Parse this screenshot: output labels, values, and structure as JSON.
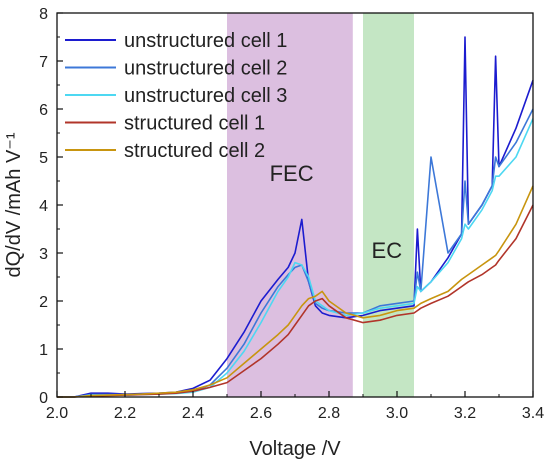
{
  "chart_data": {
    "type": "line",
    "xlabel": "Voltage /V",
    "ylabel": "dQ/dV /mAh V⁻¹",
    "xlim": [
      2.0,
      3.4
    ],
    "ylim": [
      0,
      8
    ],
    "xticks": [
      "2.0",
      "2.2",
      "2.4",
      "2.6",
      "2.8",
      "3.0",
      "3.2",
      "3.4"
    ],
    "yticks": [
      "0",
      "1",
      "2",
      "3",
      "4",
      "5",
      "6",
      "7",
      "8"
    ],
    "grid": false,
    "legend_position": "top-left",
    "regions": [
      {
        "label": "FEC",
        "x0": 2.5,
        "x1": 2.87,
        "color": "#dcbfe0",
        "label_x": 2.69,
        "label_y": 4.5
      },
      {
        "label": "EC",
        "x0": 2.9,
        "x1": 3.05,
        "color": "#c4e6c4",
        "label_x": 2.97,
        "label_y": 2.9
      }
    ],
    "x": [
      2.0,
      2.05,
      2.1,
      2.15,
      2.2,
      2.25,
      2.3,
      2.35,
      2.4,
      2.45,
      2.5,
      2.55,
      2.6,
      2.65,
      2.68,
      2.7,
      2.72,
      2.74,
      2.76,
      2.78,
      2.8,
      2.85,
      2.9,
      2.95,
      3.0,
      3.05,
      3.06,
      3.07,
      3.1,
      3.15,
      3.19,
      3.2,
      3.21,
      3.25,
      3.28,
      3.29,
      3.3,
      3.35,
      3.4
    ],
    "series": [
      {
        "name": "unstructured cell 1",
        "color": "#1c1ccf",
        "values": [
          0,
          0,
          0.08,
          0.08,
          0.06,
          0.07,
          0.08,
          0.1,
          0.18,
          0.35,
          0.8,
          1.35,
          2.0,
          2.45,
          2.7,
          3.0,
          3.7,
          2.4,
          1.9,
          1.75,
          1.7,
          1.65,
          1.7,
          1.8,
          1.85,
          1.9,
          3.5,
          2.2,
          2.4,
          2.9,
          3.4,
          7.5,
          3.6,
          4.0,
          4.4,
          7.1,
          4.8,
          5.6,
          6.6
        ]
      },
      {
        "name": "unstructured cell 2",
        "color": "#3d78d8",
        "values": [
          0,
          0,
          0.05,
          0.05,
          0.05,
          0.06,
          0.07,
          0.08,
          0.12,
          0.25,
          0.6,
          1.1,
          1.75,
          2.3,
          2.55,
          2.7,
          2.75,
          2.4,
          1.95,
          1.85,
          1.8,
          1.75,
          1.75,
          1.9,
          1.95,
          2.0,
          2.6,
          2.2,
          5.0,
          3.0,
          3.4,
          4.5,
          3.6,
          4.0,
          4.4,
          5.0,
          4.8,
          5.3,
          6.0
        ]
      },
      {
        "name": "unstructured cell 3",
        "color": "#4dd8f2",
        "values": [
          0,
          0,
          0.04,
          0.04,
          0.04,
          0.05,
          0.06,
          0.07,
          0.1,
          0.2,
          0.5,
          0.95,
          1.55,
          2.2,
          2.5,
          2.8,
          2.75,
          2.5,
          2.0,
          1.9,
          1.8,
          1.7,
          1.75,
          1.85,
          1.9,
          1.95,
          2.3,
          2.2,
          2.4,
          2.8,
          3.3,
          3.6,
          3.5,
          3.9,
          4.3,
          4.6,
          4.6,
          5.0,
          5.8
        ]
      },
      {
        "name": "structured cell 1",
        "color": "#b1352a",
        "values": [
          0,
          0,
          0.02,
          0.03,
          0.04,
          0.05,
          0.06,
          0.08,
          0.12,
          0.2,
          0.3,
          0.55,
          0.8,
          1.1,
          1.3,
          1.5,
          1.7,
          1.9,
          2.0,
          2.05,
          1.9,
          1.65,
          1.55,
          1.6,
          1.7,
          1.75,
          1.8,
          1.85,
          1.95,
          2.1,
          2.3,
          2.35,
          2.4,
          2.55,
          2.7,
          2.75,
          2.85,
          3.3,
          4.0
        ]
      },
      {
        "name": "structured cell 2",
        "color": "#c8950f",
        "values": [
          0,
          0,
          0.03,
          0.04,
          0.05,
          0.06,
          0.08,
          0.1,
          0.15,
          0.25,
          0.4,
          0.7,
          1.0,
          1.3,
          1.5,
          1.7,
          1.9,
          2.05,
          2.1,
          2.2,
          2.0,
          1.75,
          1.65,
          1.7,
          1.8,
          1.85,
          1.9,
          1.95,
          2.05,
          2.2,
          2.45,
          2.5,
          2.55,
          2.75,
          2.9,
          2.95,
          3.05,
          3.6,
          4.4
        ]
      }
    ]
  }
}
